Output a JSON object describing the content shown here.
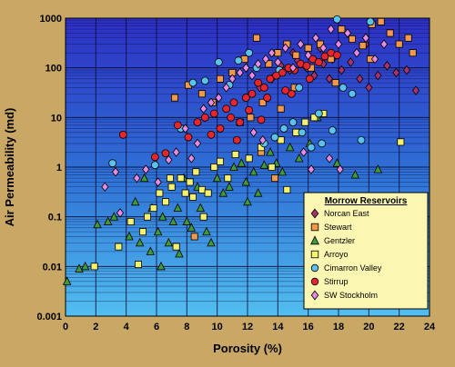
{
  "chart_data": {
    "type": "scatter",
    "xlabel": "Porosity (%)",
    "ylabel": "Air Permeability (md)",
    "xlim": [
      0,
      24
    ],
    "ylim": [
      0.001,
      1000
    ],
    "y_scale": "log",
    "x_ticks": [
      "0",
      "2",
      "4",
      "6",
      "8",
      "10",
      "12",
      "14",
      "16",
      "18",
      "20",
      "22",
      "24"
    ],
    "y_ticks": [
      "0.001",
      "0.01",
      "0.1",
      "1",
      "10",
      "100",
      "1000"
    ],
    "grid": true,
    "legend_title": "Morrow Reservoirs",
    "legend_placement": "bottom-right",
    "series": [
      {
        "name": "Norcan East",
        "marker": "diamond",
        "color": "#a8336b",
        "points": [
          [
            13.6,
            60
          ],
          [
            14.2,
            110
          ],
          [
            14.8,
            90
          ],
          [
            15.3,
            140
          ],
          [
            15.9,
            100
          ],
          [
            16.4,
            70
          ],
          [
            17.0,
            120
          ],
          [
            17.6,
            150
          ],
          [
            18.2,
            90
          ],
          [
            18.8,
            130
          ],
          [
            19.4,
            60
          ],
          [
            20.0,
            40
          ],
          [
            20.6,
            70
          ],
          [
            21.2,
            110
          ],
          [
            21.8,
            80
          ],
          [
            22.5,
            90
          ],
          [
            23.1,
            35
          ],
          [
            15.0,
            200
          ],
          [
            16.8,
            250
          ],
          [
            19.8,
            300
          ],
          [
            12.8,
            40
          ],
          [
            17.4,
            60
          ]
        ]
      },
      {
        "name": "Stewart",
        "marker": "square",
        "color": "#f2994a",
        "points": [
          [
            7.2,
            25
          ],
          [
            8.1,
            45
          ],
          [
            9.0,
            30
          ],
          [
            10.2,
            60
          ],
          [
            11.0,
            80
          ],
          [
            11.8,
            150
          ],
          [
            12.6,
            400
          ],
          [
            13.4,
            120
          ],
          [
            14.0,
            200
          ],
          [
            14.6,
            300
          ],
          [
            15.2,
            180
          ],
          [
            16.0,
            250
          ],
          [
            16.8,
            300
          ],
          [
            17.5,
            150
          ],
          [
            18.2,
            600
          ],
          [
            18.9,
            380
          ],
          [
            19.6,
            280
          ],
          [
            20.2,
            750
          ],
          [
            20.8,
            850
          ],
          [
            21.4,
            500
          ],
          [
            22.0,
            300
          ],
          [
            22.6,
            400
          ],
          [
            22.9,
            200
          ],
          [
            13.0,
            20
          ],
          [
            14.2,
            15
          ],
          [
            12.2,
            10
          ],
          [
            11.5,
            8
          ],
          [
            9.7,
            20
          ],
          [
            16.2,
            100
          ],
          [
            20.1,
            150
          ],
          [
            8.5,
            0.04
          ],
          [
            13.8,
            0.6
          ],
          [
            12.9,
            2.0
          ],
          [
            15.1,
            40
          ],
          [
            17.8,
            50
          ]
        ]
      },
      {
        "name": "Gentzler",
        "marker": "triangle",
        "color": "#3f9a38",
        "points": [
          [
            0.1,
            0.005
          ],
          [
            0.9,
            0.009
          ],
          [
            1.3,
            0.01
          ],
          [
            2.1,
            0.07
          ],
          [
            2.8,
            0.08
          ],
          [
            3.2,
            0.1
          ],
          [
            4.2,
            0.04
          ],
          [
            4.9,
            0.03
          ],
          [
            5.2,
            0.6
          ],
          [
            5.6,
            0.02
          ],
          [
            6.1,
            0.05
          ],
          [
            6.4,
            0.1
          ],
          [
            6.8,
            0.03
          ],
          [
            7.1,
            0.08
          ],
          [
            7.4,
            0.15
          ],
          [
            7.8,
            0.6
          ],
          [
            8.0,
            0.08
          ],
          [
            8.3,
            0.06
          ],
          [
            8.9,
            0.15
          ],
          [
            9.3,
            0.05
          ],
          [
            9.6,
            0.03
          ],
          [
            10.0,
            0.6
          ],
          [
            10.4,
            0.3
          ],
          [
            10.8,
            0.4
          ],
          [
            11.1,
            1.0
          ],
          [
            11.6,
            1.2
          ],
          [
            12.0,
            0.2
          ],
          [
            12.4,
            0.8
          ],
          [
            12.7,
            0.3
          ],
          [
            13.1,
            1.1
          ],
          [
            13.5,
            2.0
          ],
          [
            13.9,
            1.2
          ],
          [
            14.3,
            0.8
          ],
          [
            14.8,
            2.5
          ],
          [
            15.4,
            1.5
          ],
          [
            16.1,
            3.0
          ],
          [
            16.6,
            10.0
          ],
          [
            17.9,
            1.2
          ],
          [
            19.1,
            0.7
          ],
          [
            20.6,
            0.9
          ],
          [
            6.3,
            0.01
          ],
          [
            7.5,
            0.018
          ],
          [
            4.6,
            0.2
          ],
          [
            5.7,
            0.15
          ],
          [
            8.7,
            0.4
          ],
          [
            11.9,
            0.5
          ]
        ]
      },
      {
        "name": "Arroyo",
        "marker": "square",
        "color": "#f5f06e",
        "points": [
          [
            1.9,
            0.01
          ],
          [
            3.5,
            0.025
          ],
          [
            4.3,
            0.08
          ],
          [
            4.8,
            0.011
          ],
          [
            5.1,
            0.05
          ],
          [
            5.4,
            0.1
          ],
          [
            5.8,
            0.15
          ],
          [
            6.2,
            0.3
          ],
          [
            6.6,
            0.2
          ],
          [
            7.0,
            0.4
          ],
          [
            7.3,
            0.025
          ],
          [
            7.6,
            0.6
          ],
          [
            7.9,
            0.3
          ],
          [
            8.2,
            0.5
          ],
          [
            8.6,
            0.8
          ],
          [
            9.0,
            0.35
          ],
          [
            9.4,
            0.3
          ],
          [
            9.8,
            1.0
          ],
          [
            10.2,
            1.3
          ],
          [
            10.7,
            0.6
          ],
          [
            11.2,
            1.8
          ],
          [
            12.1,
            1.5
          ],
          [
            12.9,
            2.5
          ],
          [
            13.6,
            1.0
          ],
          [
            14.2,
            3.5
          ],
          [
            14.6,
            0.35
          ],
          [
            15.2,
            5.0
          ],
          [
            15.8,
            8.0
          ],
          [
            16.4,
            10.0
          ],
          [
            17.0,
            12.0
          ],
          [
            22.1,
            3.2
          ],
          [
            9.1,
            0.1
          ],
          [
            8.4,
            0.25
          ],
          [
            6.9,
            0.6
          ]
        ]
      },
      {
        "name": "Cimarron Valley",
        "marker": "circle",
        "color": "#59c3ee",
        "points": [
          [
            3.1,
            1.2
          ],
          [
            5.9,
            1.1
          ],
          [
            7.6,
            6.0
          ],
          [
            8.4,
            50
          ],
          [
            9.2,
            55
          ],
          [
            10.1,
            130
          ],
          [
            10.8,
            45
          ],
          [
            11.4,
            140
          ],
          [
            12.1,
            200
          ],
          [
            12.6,
            100
          ],
          [
            13.1,
            3.0
          ],
          [
            13.8,
            4.0
          ],
          [
            14.4,
            6.0
          ],
          [
            15.0,
            8.0
          ],
          [
            15.6,
            5.0
          ],
          [
            16.2,
            2.5
          ],
          [
            16.9,
            3.0
          ],
          [
            17.6,
            5.5
          ],
          [
            18.3,
            40
          ],
          [
            18.9,
            30
          ],
          [
            19.5,
            3.5
          ],
          [
            17.9,
            950
          ],
          [
            20.1,
            850
          ],
          [
            14.1,
            90
          ],
          [
            15.4,
            40
          ],
          [
            16.7,
            12
          ]
        ]
      },
      {
        "name": "Stirrup",
        "marker": "circle",
        "color": "#e8252b",
        "points": [
          [
            3.8,
            4.5
          ],
          [
            5.9,
            1.6
          ],
          [
            6.6,
            1.9
          ],
          [
            7.4,
            7
          ],
          [
            8.1,
            4
          ],
          [
            8.7,
            8
          ],
          [
            9.2,
            10
          ],
          [
            9.8,
            12
          ],
          [
            10.2,
            6
          ],
          [
            10.6,
            15
          ],
          [
            11.1,
            20
          ],
          [
            11.5,
            8
          ],
          [
            11.9,
            25
          ],
          [
            12.3,
            30
          ],
          [
            12.7,
            50
          ],
          [
            13.1,
            40
          ],
          [
            13.5,
            60
          ],
          [
            13.9,
            70
          ],
          [
            14.3,
            80
          ],
          [
            14.7,
            100
          ],
          [
            15.1,
            90
          ],
          [
            15.5,
            120
          ],
          [
            15.9,
            110
          ],
          [
            16.3,
            150
          ],
          [
            16.7,
            130
          ],
          [
            17.1,
            170
          ],
          [
            17.5,
            200
          ],
          [
            17.9,
            180
          ],
          [
            11.3,
            3.5
          ],
          [
            12.1,
            14
          ],
          [
            13.3,
            25
          ],
          [
            14.9,
            30
          ],
          [
            16.1,
            60
          ],
          [
            10.9,
            10
          ],
          [
            9.6,
            4.5
          ],
          [
            12.9,
            9
          ],
          [
            14.5,
            35
          ]
        ]
      },
      {
        "name": "SW Stockholm",
        "marker": "diamond",
        "color": "#e68ae3",
        "points": [
          [
            2.6,
            0.4
          ],
          [
            3.3,
            0.8
          ],
          [
            3.6,
            0.12
          ],
          [
            4.7,
            0.6
          ],
          [
            5.3,
            0.9
          ],
          [
            6.1,
            0.5
          ],
          [
            6.8,
            1.4
          ],
          [
            7.3,
            2.0
          ],
          [
            7.9,
            6.0
          ],
          [
            8.3,
            1.5
          ],
          [
            8.7,
            3.0
          ],
          [
            9.1,
            15
          ],
          [
            9.6,
            20
          ],
          [
            10.1,
            25
          ],
          [
            10.6,
            40
          ],
          [
            11.0,
            60
          ],
          [
            11.5,
            80
          ],
          [
            11.9,
            100
          ],
          [
            12.3,
            70
          ],
          [
            12.7,
            120
          ],
          [
            13.2,
            150
          ],
          [
            13.6,
            200
          ],
          [
            14.0,
            130
          ],
          [
            14.5,
            250
          ],
          [
            15.0,
            100
          ],
          [
            15.5,
            300
          ],
          [
            16.0,
            180
          ],
          [
            16.5,
            400
          ],
          [
            17.0,
            250
          ],
          [
            17.5,
            600
          ],
          [
            18.0,
            300
          ],
          [
            18.6,
            500
          ],
          [
            19.2,
            200
          ],
          [
            19.8,
            400
          ],
          [
            20.4,
            150
          ],
          [
            21.0,
            300
          ],
          [
            16.2,
            0.9
          ],
          [
            18.1,
            0.9
          ],
          [
            17.4,
            1.5
          ],
          [
            15.7,
            2.0
          ],
          [
            13.0,
            3.5
          ],
          [
            12.4,
            5.0
          ]
        ]
      }
    ]
  }
}
